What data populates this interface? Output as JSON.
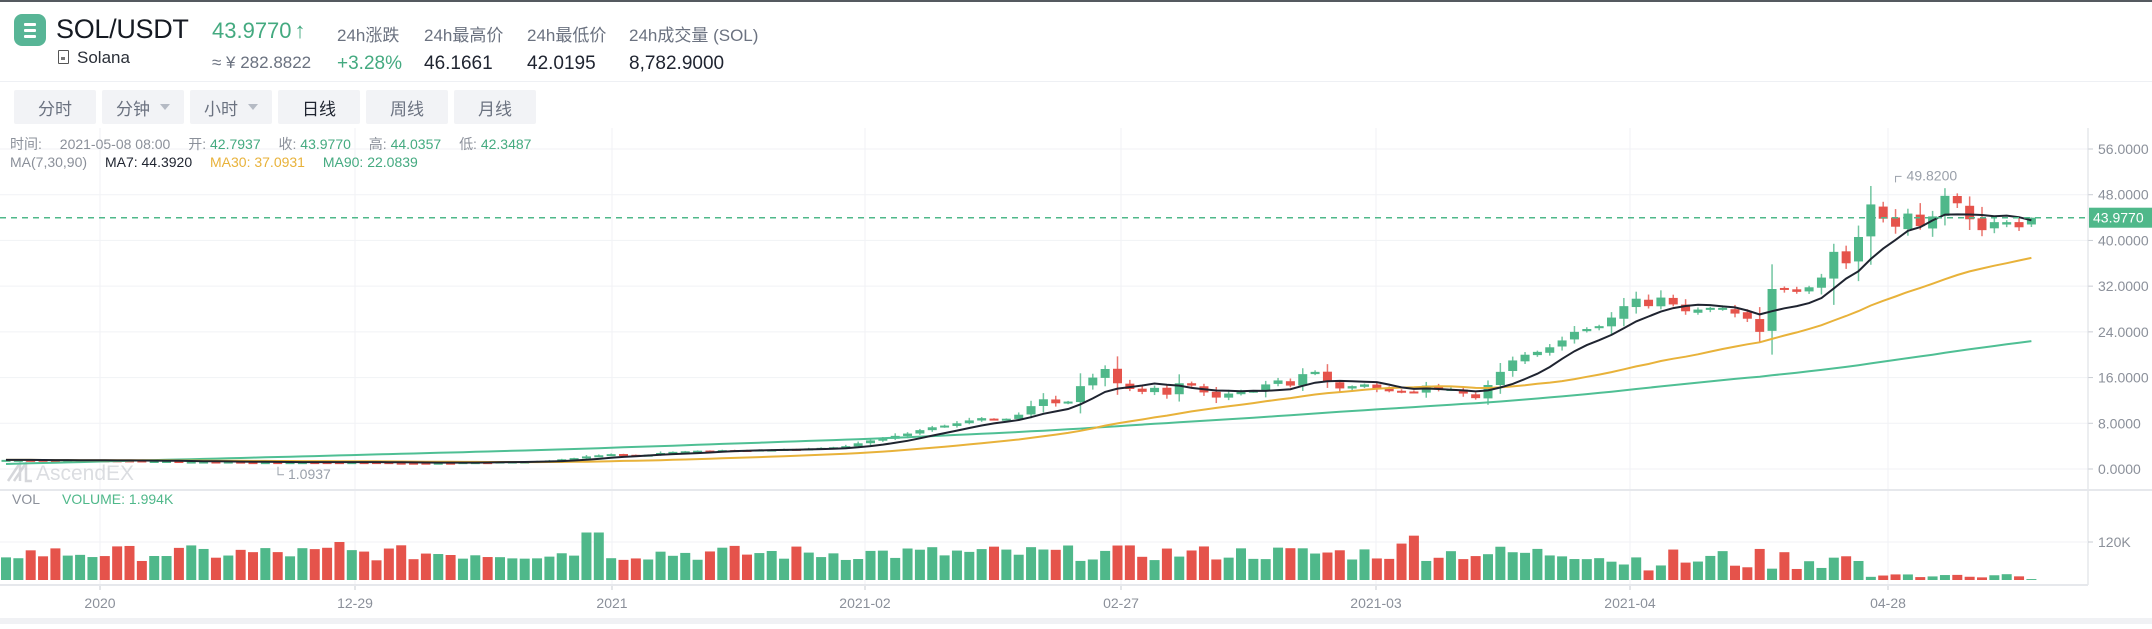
{
  "header": {
    "pair": "SOL/USDT",
    "full_name": "Solana",
    "last_price": "43.9770",
    "last_arrow": "↑",
    "cny_price": "≈ ¥ 282.8822",
    "stats": [
      {
        "label": "24h涨跌",
        "value": "+3.28%"
      },
      {
        "label": "24h最高价",
        "value": "46.1661"
      },
      {
        "label": "24h最低价",
        "value": "42.0195"
      },
      {
        "label": "24h成交量 (SOL)",
        "value": "8,782.9000"
      }
    ]
  },
  "tabs": [
    {
      "label": "分时",
      "dropdown": false,
      "active": false
    },
    {
      "label": "分钟",
      "dropdown": true,
      "active": false
    },
    {
      "label": "小时",
      "dropdown": true,
      "active": false
    },
    {
      "label": "日线",
      "dropdown": false,
      "active": true
    },
    {
      "label": "周线",
      "dropdown": false,
      "active": false
    },
    {
      "label": "月线",
      "dropdown": false,
      "active": false
    }
  ],
  "ohlc_info": {
    "time_label": "时间:",
    "time": "2021-05-08 08:00",
    "open_label": "开:",
    "open": "42.7937",
    "close_label": "收:",
    "close": "43.9770",
    "high_label": "高:",
    "high": "44.0357",
    "low_label": "低:",
    "low": "42.3487"
  },
  "ma_info": {
    "label": "MA(7,30,90)",
    "ma7": "MA7: 44.3920",
    "ma30": "MA30: 37.0931",
    "ma90": "MA90: 22.0839"
  },
  "volume_info": {
    "label": "VOL",
    "value": "VOLUME: 1.994K"
  },
  "watermark": "AscendEX",
  "colors": {
    "up": "#4fb88a",
    "down": "#e5534b",
    "ma7": "#1f2430",
    "ma30": "#e8b23a",
    "ma90": "#4fbf94",
    "accent": "#58b596"
  },
  "chart_data": {
    "type": "candlestick",
    "title": "SOL/USDT 日线",
    "y_axis": {
      "ticks": [
        "56.0000",
        "48.0000",
        "40.0000",
        "32.0000",
        "24.0000",
        "16.0000",
        "8.0000",
        "0.0000"
      ],
      "range": [
        0,
        56
      ]
    },
    "x_axis": {
      "ticks": [
        "2020",
        "12-29",
        "2021",
        "2021-02",
        "02-27",
        "2021-03",
        "2021-04",
        "04-28"
      ]
    },
    "current_price_label": "43.9770",
    "max_label": "49.8200",
    "min_label": "1.0937",
    "volume_axis": {
      "ticks": [
        "120K"
      ]
    },
    "series": [
      {
        "name": "MA7",
        "last": 44.392
      },
      {
        "name": "MA30",
        "last": 37.0931
      },
      {
        "name": "MA90",
        "last": 22.0839
      }
    ],
    "close_series_approx": [
      1.6,
      1.6,
      1.6,
      1.5,
      1.5,
      1.5,
      1.5,
      1.5,
      1.5,
      1.5,
      1.5,
      1.4,
      1.4,
      1.4,
      1.3,
      1.3,
      1.3,
      1.3,
      1.3,
      1.2,
      1.2,
      1.2,
      1.2,
      1.2,
      1.2,
      1.2,
      1.2,
      1.2,
      1.2,
      1.2,
      1.2,
      1.1,
      1.1,
      1.1,
      1.1,
      1.1,
      1.1,
      1.2,
      1.2,
      1.2,
      1.3,
      1.3,
      1.3,
      1.4,
      1.5,
      1.7,
      1.9,
      2.2,
      2.4,
      2.6,
      2.5,
      2.4,
      2.5,
      2.8,
      3.0,
      3.1,
      3.2,
      3.2,
      3.3,
      3.3,
      3.3,
      3.4,
      3.4,
      3.5,
      3.5,
      3.6,
      3.7,
      3.8,
      4.0,
      4.5,
      5.0,
      5.3,
      5.8,
      6.2,
      6.8,
      7.3,
      7.6,
      8.0,
      8.5,
      8.9,
      8.7,
      8.8,
      9.5,
      11.0,
      12.2,
      11.5,
      11.8,
      14.5,
      16.0,
      17.5,
      15.0,
      14.0,
      13.5,
      14.2,
      13.0,
      15.0,
      14.6,
      13.4,
      12.5,
      13.2,
      13.5,
      13.7,
      14.8,
      15.5,
      14.6,
      16.6,
      17.0,
      15.3,
      14.1,
      14.5,
      14.8,
      14.1,
      13.6,
      13.5,
      13.5,
      14.6,
      13.9,
      14.0,
      13.2,
      12.4,
      14.7,
      17.0,
      19.0,
      20.0,
      20.5,
      21.3,
      22.5,
      24.0,
      24.5,
      25.0,
      26.5,
      28.5,
      29.8,
      28.5,
      30.0,
      28.8,
      27.6,
      27.9,
      28.2,
      28.2,
      27.2,
      26.3,
      24.0,
      31.5,
      31.4,
      31.0,
      31.8,
      33.5,
      38.0,
      36.0,
      40.6,
      46.3,
      43.8,
      42.4,
      44.7,
      42.5,
      44.2,
      47.8,
      46.5,
      43.7,
      41.8,
      43.2,
      43.2,
      42.3,
      43.97
    ]
  }
}
